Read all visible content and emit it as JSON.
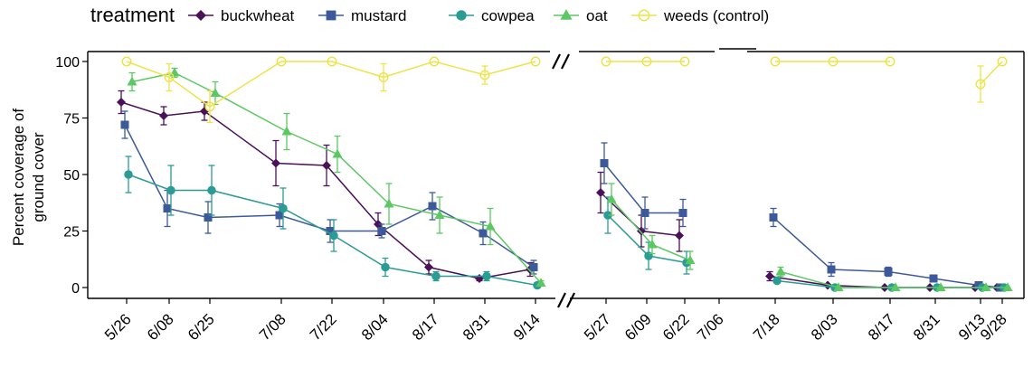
{
  "chart_data": {
    "type": "line",
    "ylabel_lines": [
      "Percent coverage of",
      "ground cover"
    ],
    "xlabel": "",
    "ylim": [
      0,
      100
    ],
    "yticks": [
      0,
      25,
      50,
      75,
      100
    ],
    "grid": false,
    "legend": {
      "title": "treatment",
      "placement": "top",
      "entries": [
        "buckwheat",
        "mustard",
        "cowpea",
        "oat",
        "weeds (control)"
      ]
    },
    "panels": [
      {
        "categories": [
          "5/26",
          "6/08",
          "6/25",
          "7/08",
          "7/22",
          "8/04",
          "8/17",
          "8/31",
          "9/14"
        ],
        "series": [
          {
            "name": "buckwheat",
            "values": [
              82,
              76,
              78,
              55,
              54,
              28,
              9,
              4,
              8
            ],
            "err": [
              5,
              4,
              4,
              10,
              9,
              5,
              3,
              1,
              3
            ]
          },
          {
            "name": "mustard",
            "values": [
              72,
              35,
              31,
              32,
              25,
              25,
              36,
              24,
              9
            ],
            "err": [
              6,
              8,
              7,
              5,
              5,
              3,
              6,
              5,
              3
            ]
          },
          {
            "name": "cowpea",
            "values": [
              50,
              43,
              43,
              35,
              23,
              9,
              5,
              5,
              1
            ],
            "err": [
              8,
              11,
              11,
              9,
              7,
              4,
              2,
              2,
              1
            ]
          },
          {
            "name": "oat",
            "values": [
              91,
              95,
              86,
              69,
              59,
              37,
              32,
              27,
              2
            ],
            "err": [
              4,
              2,
              5,
              8,
              8,
              9,
              8,
              8,
              1
            ]
          },
          {
            "name": "weeds (control)",
            "values": [
              100,
              93,
              80,
              100,
              100,
              93,
              100,
              94,
              100
            ],
            "err": [
              0,
              6,
              7,
              0,
              0,
              6,
              0,
              4,
              0
            ]
          }
        ]
      },
      {
        "categories": [
          "5/27",
          "6/09",
          "6/22",
          "7/06",
          "7/18",
          "8/03",
          "8/17",
          "8/31",
          "9/13",
          "9/28"
        ],
        "series": [
          {
            "name": "buckwheat",
            "values": [
              42,
              25,
              23,
              null,
              5,
              1,
              0,
              0,
              0,
              0
            ],
            "err": [
              9,
              7,
              7,
              null,
              2,
              0,
              0,
              0,
              0,
              0
            ]
          },
          {
            "name": "mustard",
            "values": [
              55,
              33,
              33,
              null,
              31,
              8,
              7,
              4,
              1,
              0
            ],
            "err": [
              9,
              7,
              6,
              null,
              4,
              3,
              2,
              0,
              0,
              0
            ]
          },
          {
            "name": "cowpea",
            "values": [
              32,
              14,
              11,
              null,
              3,
              0,
              0,
              0,
              0,
              0
            ],
            "err": [
              8,
              6,
              5,
              null,
              1,
              0,
              0,
              0,
              0,
              0
            ]
          },
          {
            "name": "oat",
            "values": [
              39,
              19,
              12,
              null,
              7,
              0,
              0,
              0,
              0,
              0
            ],
            "err": [
              7,
              4,
              4,
              null,
              2,
              0,
              0,
              0,
              0,
              0
            ]
          },
          {
            "name": "weeds (control)",
            "values": [
              100,
              100,
              100,
              null,
              100,
              100,
              100,
              null,
              90,
              100
            ],
            "err": [
              0,
              0,
              0,
              null,
              0,
              0,
              0,
              null,
              8,
              0
            ]
          }
        ]
      }
    ]
  },
  "colors": {
    "buckwheat": "#4a1158",
    "mustard": "#3c5a99",
    "cowpea": "#2b9c94",
    "oat": "#5cc863",
    "weeds (control)": "#ede34b",
    "axis": "#000000"
  },
  "markers": {
    "buckwheat": "diamond",
    "mustard": "square",
    "cowpea": "circle",
    "oat": "triangle",
    "weeds (control)": "open-circle"
  }
}
